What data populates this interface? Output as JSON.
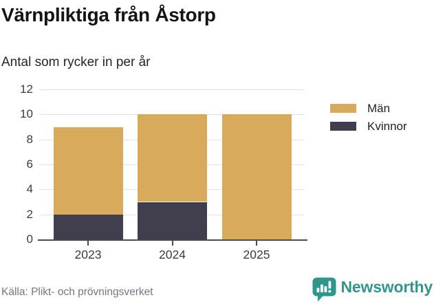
{
  "header": {
    "title": "Värnpliktiga från Åstorp",
    "subtitle": "Antal som rycker in per år"
  },
  "chart_data": {
    "type": "bar",
    "stacked": true,
    "categories": [
      "2023",
      "2024",
      "2025"
    ],
    "series": [
      {
        "name": "Män",
        "color": "#d8ab5c",
        "values": [
          7,
          7,
          10
        ]
      },
      {
        "name": "Kvinnor",
        "color": "#413f4e",
        "values": [
          2,
          3,
          0
        ]
      }
    ],
    "totals": [
      9,
      10,
      10
    ],
    "title": "Värnpliktiga från Åstorp",
    "subtitle": "Antal som rycker in per år",
    "xlabel": "",
    "ylabel": "",
    "ylim": [
      0,
      12
    ],
    "y_ticks": [
      0,
      2,
      4,
      6,
      8,
      10,
      12
    ],
    "grid": true,
    "legend_position": "top-right"
  },
  "footer": {
    "source": "Källa: Plikt- och prövningsverket",
    "brand": "Newsworthy",
    "brand_icon": "newsworthy-chart-bubble-icon",
    "brand_color": "#35948d"
  }
}
